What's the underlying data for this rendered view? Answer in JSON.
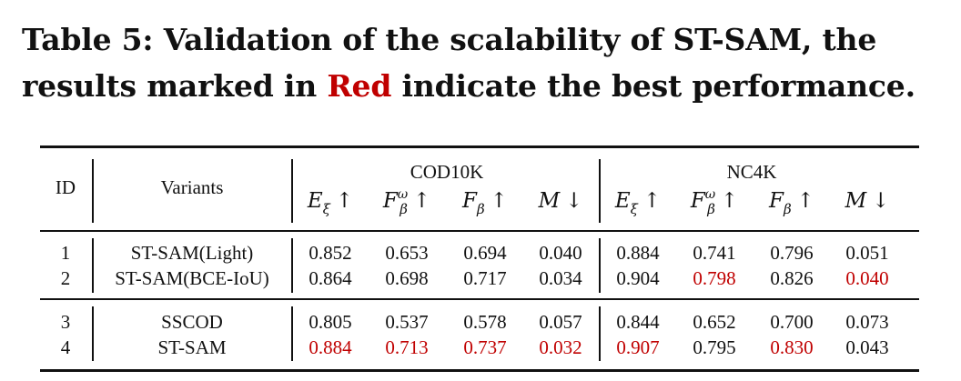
{
  "caption": {
    "prefix": "Table 5: Validation of the scalability of ST-SAM, the results marked in ",
    "highlight": "Red",
    "suffix": " indicate the best performance.",
    "highlight_color": "#c00000"
  },
  "table": {
    "col_id": "ID",
    "col_variants": "Variants",
    "groups": [
      "COD10K",
      "NC4K"
    ],
    "metrics": [
      {
        "base": "E",
        "sub": "ξ",
        "sup": "",
        "arrow": "↑"
      },
      {
        "base": "F",
        "sub": "β",
        "sup": "ω",
        "arrow": "↑"
      },
      {
        "base": "F",
        "sub": "β",
        "sup": "",
        "arrow": "↑"
      },
      {
        "base": "M",
        "sub": "",
        "sup": "",
        "arrow": "↓"
      }
    ],
    "rows": [
      {
        "id": "1",
        "variant": "ST-SAM(Light)",
        "values": [
          "0.852",
          "0.653",
          "0.694",
          "0.040",
          "0.884",
          "0.741",
          "0.796",
          "0.051"
        ],
        "best": [
          false,
          false,
          false,
          false,
          false,
          false,
          false,
          false
        ]
      },
      {
        "id": "2",
        "variant": "ST-SAM(BCE-IoU)",
        "values": [
          "0.864",
          "0.698",
          "0.717",
          "0.034",
          "0.904",
          "0.798",
          "0.826",
          "0.040"
        ],
        "best": [
          false,
          false,
          false,
          false,
          false,
          true,
          false,
          true
        ]
      },
      {
        "id": "3",
        "variant": "SSCOD",
        "values": [
          "0.805",
          "0.537",
          "0.578",
          "0.057",
          "0.844",
          "0.652",
          "0.700",
          "0.073"
        ],
        "best": [
          false,
          false,
          false,
          false,
          false,
          false,
          false,
          false
        ]
      },
      {
        "id": "4",
        "variant": "ST-SAM",
        "values": [
          "0.884",
          "0.713",
          "0.737",
          "0.032",
          "0.907",
          "0.795",
          "0.830",
          "0.043"
        ],
        "best": [
          true,
          true,
          true,
          true,
          true,
          false,
          true,
          false
        ]
      }
    ]
  }
}
